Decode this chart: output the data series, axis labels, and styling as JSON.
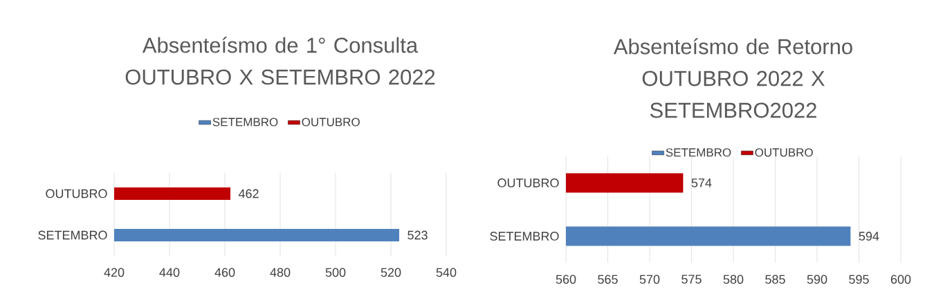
{
  "chart_data": [
    {
      "type": "bar",
      "orientation": "horizontal",
      "title": "Absenteísmo de 1° Consulta OUTUBRO X SETEMBRO 2022",
      "categories": [
        "OUTUBRO",
        "SETEMBRO"
      ],
      "series": [
        {
          "name": "SETEMBRO",
          "color": "#4f81bd",
          "values": [
            null,
            523
          ]
        },
        {
          "name": "OUTUBRO",
          "color": "#c00000",
          "values": [
            462,
            null
          ]
        }
      ],
      "xlim": [
        420,
        540
      ],
      "xticks": [
        420,
        440,
        460,
        480,
        500,
        520,
        540
      ],
      "grid": "x",
      "legend": "top",
      "data_labels": true
    },
    {
      "type": "bar",
      "orientation": "horizontal",
      "title": "Absenteísmo de Retorno OUTUBRO 2022 X SETEMBRO2022",
      "categories": [
        "OUTUBRO",
        "SETEMBRO"
      ],
      "series": [
        {
          "name": "SETEMBRO",
          "color": "#4f81bd",
          "values": [
            null,
            594
          ]
        },
        {
          "name": "OUTUBRO",
          "color": "#c00000",
          "values": [
            574,
            null
          ]
        }
      ],
      "xlim": [
        560,
        600
      ],
      "xticks": [
        560,
        565,
        570,
        575,
        580,
        585,
        590,
        595,
        600
      ],
      "grid": "x",
      "legend": "top",
      "data_labels": true
    }
  ]
}
